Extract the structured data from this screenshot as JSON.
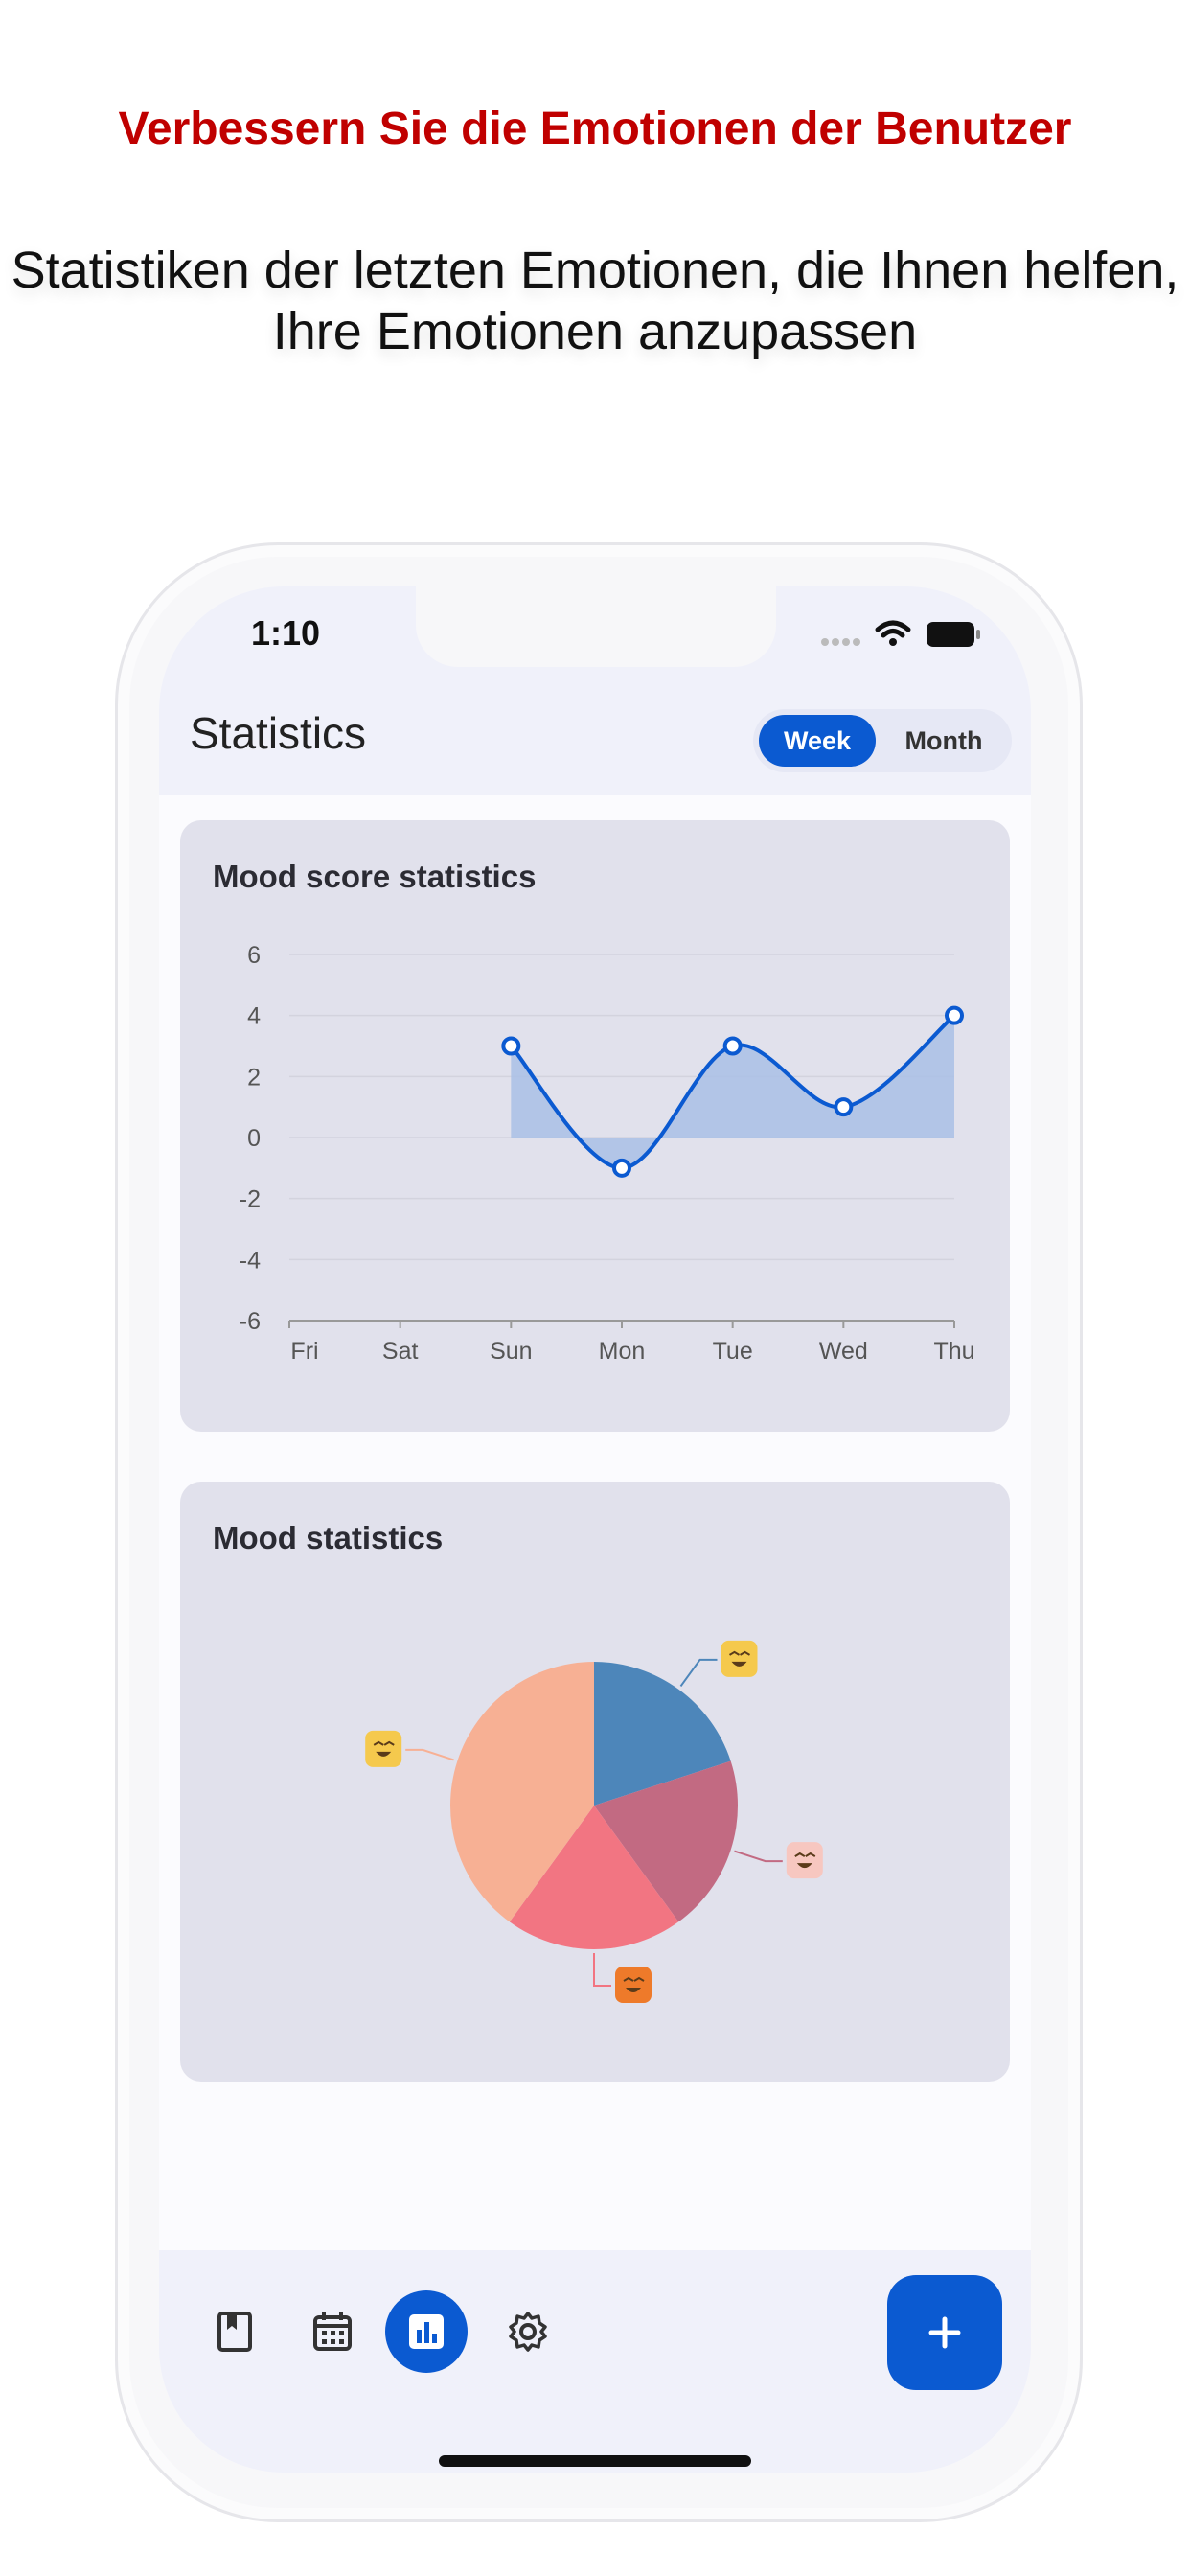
{
  "headline": "Verbessern Sie die Emotionen der Benutzer",
  "subline": "Statistiken der letzten Emotionen, die Ihnen helfen, Ihre Emotionen anzupassen",
  "status": {
    "time": "1:10"
  },
  "appbar": {
    "title": "Statistics",
    "toggle": {
      "week": "Week",
      "month": "Month",
      "selected": "Week"
    }
  },
  "mood_score_card": {
    "title": "Mood score statistics"
  },
  "mood_stats_card": {
    "title": "Mood statistics"
  },
  "nav": {
    "items": [
      {
        "name": "diary-icon",
        "active": false
      },
      {
        "name": "calendar-icon",
        "active": false
      },
      {
        "name": "statistics-icon",
        "active": true
      },
      {
        "name": "settings-icon",
        "active": false
      }
    ],
    "fab_icon": "plus-icon"
  },
  "colors": {
    "accent": "#0b5ad1",
    "headline": "#c00000",
    "card": "#e1e1ec",
    "appbar": "#f0f1fa"
  },
  "chart_data": [
    {
      "type": "line",
      "title": "Mood score statistics",
      "categories": [
        "Fri",
        "Sat",
        "Sun",
        "Mon",
        "Tue",
        "Wed",
        "Thu"
      ],
      "series": [
        {
          "values": [
            null,
            null,
            3,
            -1,
            3,
            1,
            4
          ]
        }
      ],
      "ylim": [
        -6,
        6
      ],
      "yticks": [
        6,
        4,
        2,
        0,
        -2,
        -4,
        -6
      ],
      "grid": true,
      "area_fill": true
    },
    {
      "type": "pie",
      "title": "Mood statistics",
      "slices": [
        {
          "mood": "laughing",
          "value": 20,
          "color": "#4d86ba",
          "icon_color": "#f5c94d"
        },
        {
          "mood": "content",
          "value": 20,
          "color": "#c26a82",
          "icon_color": "#f7c7c0"
        },
        {
          "mood": "angry",
          "value": 20,
          "color": "#f27582",
          "icon_color": "#ee7a2a"
        },
        {
          "mood": "happy",
          "value": 40,
          "color": "#f7b094",
          "icon_color": "#f5c94d"
        }
      ]
    }
  ]
}
